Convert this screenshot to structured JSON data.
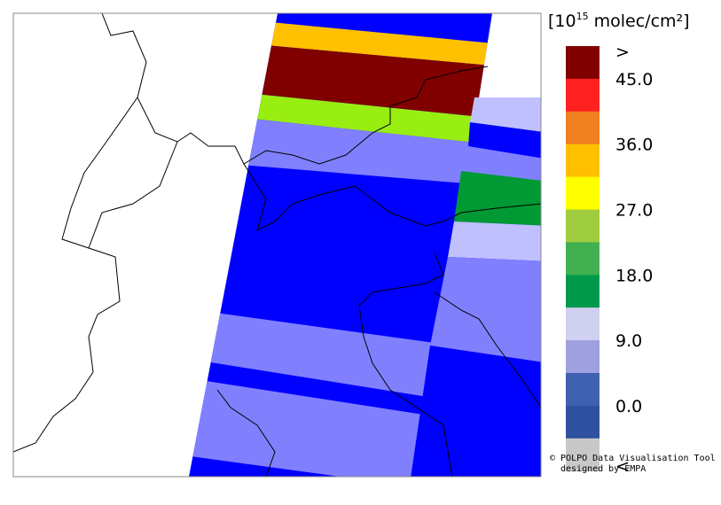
{
  "legend": {
    "unit": {
      "open": "[10",
      "exponent": "15",
      "rest": " molec/cm²]"
    },
    "labels": [
      ">",
      "45.0",
      "36.0",
      "27.0",
      "18.0",
      "9.0",
      "0.0",
      "<"
    ],
    "colors": [
      "#800000",
      "#ff2020",
      "#f08020",
      "#ffc000",
      "#ffff00",
      "#a0cc40",
      "#40b050",
      "#00994c",
      "#d0d0f0",
      "#9fa0e0",
      "#4060b0",
      "#3050a0",
      "#c8c8c8"
    ]
  },
  "credit": [
    "© POLPO Data Visualisation Tool",
    "designed by EMPA"
  ]
}
